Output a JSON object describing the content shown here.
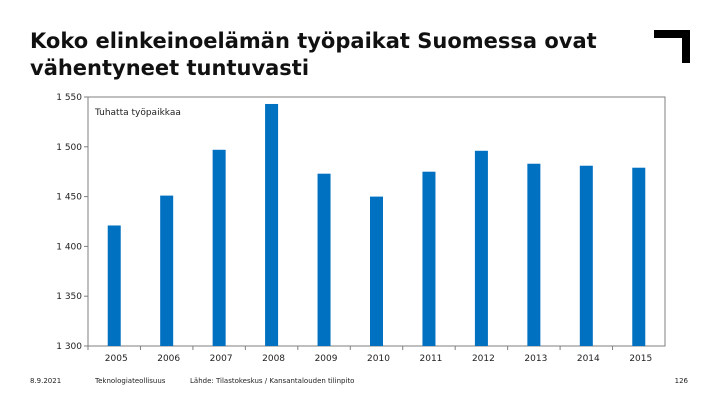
{
  "title": "Koko elinkeinoelämän työpaikat Suomessa ovat vähentyneet tuntuvasti",
  "logo": "corner-bracket-logo",
  "footer": {
    "date": "8.9.2021",
    "company": "Teknologiateollisuus",
    "source": "Lähde: Tilastokeskus / Kansantalouden tilinpito",
    "page": "126"
  },
  "colors": {
    "bar": "#0070C0",
    "axis": "#7f7f7f",
    "grid": "#d9d9d9"
  },
  "chart_data": {
    "type": "bar",
    "annotation": "Tuhatta työpaikkaa",
    "categories": [
      "2005",
      "2006",
      "2007",
      "2008",
      "2009",
      "2010",
      "2011",
      "2012",
      "2013",
      "2014",
      "2015"
    ],
    "values": [
      1421,
      1451,
      1497,
      1543,
      1473,
      1450,
      1475,
      1496,
      1483,
      1481,
      1479
    ],
    "ylim": [
      1300,
      1550
    ],
    "yticks": [
      1300,
      1350,
      1400,
      1450,
      1500,
      1550
    ],
    "ytick_labels": [
      "1 300",
      "1 350",
      "1 400",
      "1 450",
      "1 500",
      "1 550"
    ],
    "grid": false,
    "legend": "none"
  }
}
